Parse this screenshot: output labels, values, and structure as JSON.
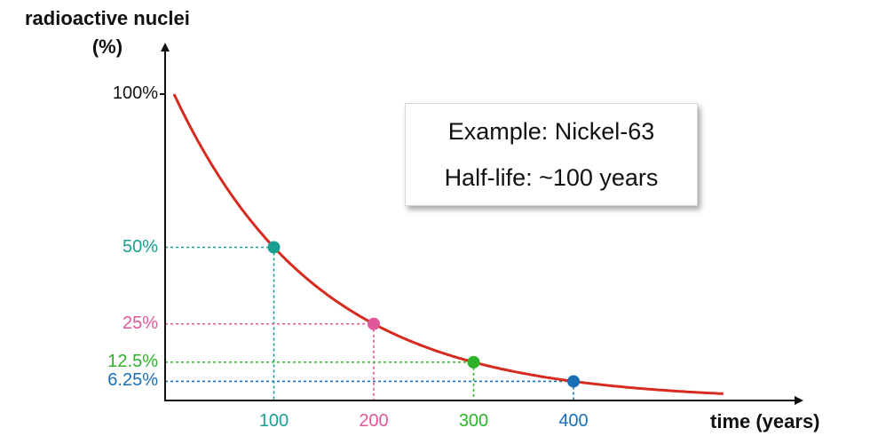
{
  "chart_data": {
    "type": "line",
    "ylabel_line1": "radioactive nuclei",
    "ylabel_line2": "(%)",
    "xlabel": "time (years)",
    "xlim": [
      0,
      550
    ],
    "ylim": [
      0,
      100
    ],
    "y_ticks": [
      {
        "value": 100,
        "label": "100%",
        "color": "#111111"
      },
      {
        "value": 50,
        "label": "50%",
        "color": "#1a9e92"
      },
      {
        "value": 25,
        "label": "25%",
        "color": "#e0579a"
      },
      {
        "value": 12.5,
        "label": "12.5%",
        "color": "#2db22a"
      },
      {
        "value": 6.25,
        "label": "6.25%",
        "color": "#1b6fb5"
      }
    ],
    "x_ticks": [
      {
        "value": 100,
        "label": "100",
        "color": "#1a9e92"
      },
      {
        "value": 200,
        "label": "200",
        "color": "#e0579a"
      },
      {
        "value": 300,
        "label": "300",
        "color": "#2db22a"
      },
      {
        "value": 400,
        "label": "400",
        "color": "#1b6fb5"
      }
    ],
    "points": [
      {
        "x": 100,
        "y": 50,
        "color": "#1a9e92"
      },
      {
        "x": 200,
        "y": 25,
        "color": "#e0579a"
      },
      {
        "x": 300,
        "y": 12.5,
        "color": "#2db22a"
      },
      {
        "x": 400,
        "y": 6.25,
        "color": "#1b6fb5"
      }
    ],
    "curve": {
      "half_life": 100,
      "initial": 100,
      "x_end": 550,
      "color": "#d62b1e"
    },
    "annotation": {
      "line1": "Example: Nickel-63",
      "line2": "Half-life: ~100 years"
    },
    "grid": false
  }
}
